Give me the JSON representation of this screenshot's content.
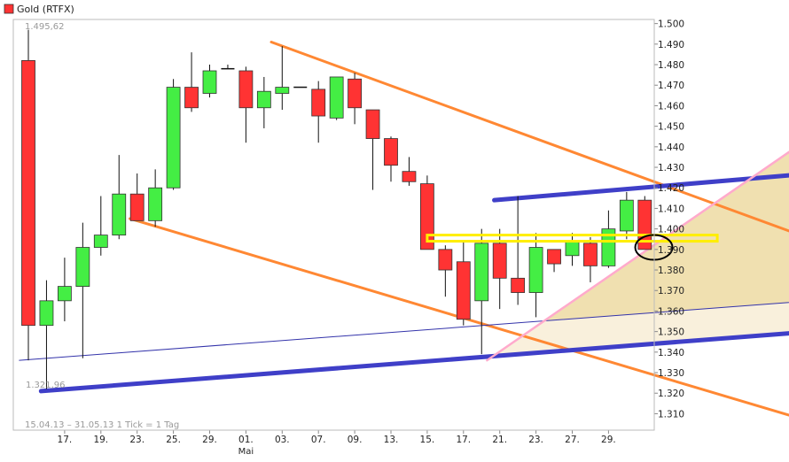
{
  "legend": {
    "label": "Gold (RTFX)",
    "swatch_color": "#ff3333"
  },
  "chart_data": {
    "type": "candlestick",
    "title": "Gold (RTFX)",
    "legend_position": "top-left",
    "ylim": [
      1302,
      1502
    ],
    "y_ticks": [
      1500,
      1490,
      1480,
      1470,
      1460,
      1450,
      1440,
      1430,
      1420,
      1410,
      1400,
      1390,
      1380,
      1370,
      1360,
      1350,
      1340,
      1330,
      1320,
      1310
    ],
    "y_tick_labels": [
      "1.500",
      "1.490",
      "1.480",
      "1.470",
      "1.460",
      "1.450",
      "1.440",
      "1.430",
      "1.420",
      "1.410",
      "1.400",
      "1.390",
      "1.380",
      "1.370",
      "1.360",
      "1.350",
      "1.340",
      "1.330",
      "1.320",
      "1.310"
    ],
    "x_labels": [
      {
        "index": 2,
        "label": "17."
      },
      {
        "index": 4,
        "label": "19."
      },
      {
        "index": 6,
        "label": "23."
      },
      {
        "index": 8,
        "label": "25."
      },
      {
        "index": 10,
        "label": "29."
      },
      {
        "index": 12,
        "label": "01."
      },
      {
        "index": 14,
        "label": "03."
      },
      {
        "index": 16,
        "label": "07."
      },
      {
        "index": 18,
        "label": "09."
      },
      {
        "index": 20,
        "label": "13."
      },
      {
        "index": 22,
        "label": "15."
      },
      {
        "index": 24,
        "label": "17."
      },
      {
        "index": 26,
        "label": "21."
      },
      {
        "index": 28,
        "label": "23."
      },
      {
        "index": 30,
        "label": "27."
      },
      {
        "index": 32,
        "label": "29."
      }
    ],
    "month_label": {
      "index": 12,
      "label": "Mai"
    },
    "high_annotation": {
      "index": 0,
      "value": 1495.62,
      "label": "1.495,62"
    },
    "low_annotation": {
      "index": 1,
      "value": 1321.96,
      "label": "1.321,96"
    },
    "date_range_label": "15.04.13 – 31.05.13   1 Tick = 1 Tag",
    "colors": {
      "up": "#44ee44",
      "down": "#ff3333",
      "resistance": "#ff8833",
      "support": "#3f3fc8",
      "thin_trend": "#3333aa",
      "pink_trend": "#ffaacc",
      "horizontal_zone": "#ffee00",
      "marker_circle": "#000000"
    },
    "candles": [
      {
        "open": 1482,
        "high": 1497,
        "low": 1336,
        "close": 1353
      },
      {
        "open": 1353,
        "high": 1375,
        "low": 1322,
        "close": 1365
      },
      {
        "open": 1365,
        "high": 1386,
        "low": 1355,
        "close": 1372
      },
      {
        "open": 1372,
        "high": 1403,
        "low": 1337,
        "close": 1391
      },
      {
        "open": 1391,
        "high": 1416,
        "low": 1387,
        "close": 1397
      },
      {
        "open": 1397,
        "high": 1436,
        "low": 1395,
        "close": 1417
      },
      {
        "open": 1417,
        "high": 1427,
        "low": 1404,
        "close": 1404
      },
      {
        "open": 1404,
        "high": 1429,
        "low": 1401,
        "close": 1420
      },
      {
        "open": 1420,
        "high": 1473,
        "low": 1419,
        "close": 1469
      },
      {
        "open": 1469,
        "high": 1486,
        "low": 1457,
        "close": 1459
      },
      {
        "open": 1466,
        "high": 1480,
        "low": 1464,
        "close": 1477
      },
      {
        "open": 1478,
        "high": 1480,
        "low": 1478,
        "close": 1478
      },
      {
        "open": 1477,
        "high": 1479,
        "low": 1442,
        "close": 1459
      },
      {
        "open": 1459,
        "high": 1474,
        "low": 1449,
        "close": 1467
      },
      {
        "open": 1466,
        "high": 1489,
        "low": 1458,
        "close": 1469
      },
      {
        "open": 1469,
        "high": 1469,
        "low": 1469,
        "close": 1469
      },
      {
        "open": 1468,
        "high": 1472,
        "low": 1442,
        "close": 1455
      },
      {
        "open": 1454,
        "high": 1473,
        "low": 1453,
        "close": 1474
      },
      {
        "open": 1473,
        "high": 1476,
        "low": 1451,
        "close": 1459
      },
      {
        "open": 1458,
        "high": 1458,
        "low": 1419,
        "close": 1444
      },
      {
        "open": 1444,
        "high": 1445,
        "low": 1423,
        "close": 1431
      },
      {
        "open": 1428,
        "high": 1435,
        "low": 1421,
        "close": 1423
      },
      {
        "open": 1422,
        "high": 1426,
        "low": 1390,
        "close": 1390
      },
      {
        "open": 1390,
        "high": 1392,
        "low": 1367,
        "close": 1380
      },
      {
        "open": 1384,
        "high": 1394,
        "low": 1353,
        "close": 1356
      },
      {
        "open": 1365,
        "high": 1400,
        "low": 1339,
        "close": 1393
      },
      {
        "open": 1393,
        "high": 1400,
        "low": 1361,
        "close": 1376
      },
      {
        "open": 1376,
        "high": 1416,
        "low": 1363,
        "close": 1369
      },
      {
        "open": 1369,
        "high": 1398,
        "low": 1357,
        "close": 1391
      },
      {
        "open": 1390,
        "high": 1390,
        "low": 1379,
        "close": 1383
      },
      {
        "open": 1387,
        "high": 1398,
        "low": 1382,
        "close": 1394
      },
      {
        "open": 1393,
        "high": 1396,
        "low": 1374,
        "close": 1382
      },
      {
        "open": 1382,
        "high": 1409,
        "low": 1381,
        "close": 1400
      },
      {
        "open": 1399,
        "high": 1418,
        "low": 1395,
        "close": 1414
      },
      {
        "open": 1414,
        "high": 1416,
        "low": 1392,
        "close": 1390
      }
    ],
    "trend_lines": [
      {
        "name": "resistance-upper",
        "kind": "resistance",
        "from": {
          "index": 13.4,
          "value": 1491
        },
        "to": {
          "index": 43.2,
          "value": 1395
        }
      },
      {
        "name": "resistance-lower",
        "kind": "resistance",
        "from": {
          "index": 5.6,
          "value": 1405
        },
        "to": {
          "index": 43.2,
          "value": 1306
        }
      },
      {
        "name": "support-bottom",
        "kind": "support",
        "from": {
          "index": 0.7,
          "value": 1321
        },
        "to": {
          "index": 43.2,
          "value": 1350
        }
      },
      {
        "name": "support-top",
        "kind": "support",
        "from": {
          "index": 25.7,
          "value": 1414
        },
        "to": {
          "index": 43.2,
          "value": 1427
        }
      },
      {
        "name": "thin-trend",
        "kind": "thin",
        "from": {
          "index": -0.5,
          "value": 1336
        },
        "to": {
          "index": 43.2,
          "value": 1365
        }
      },
      {
        "name": "pink-trend",
        "kind": "pink",
        "from": {
          "index": 25.3,
          "value": 1336
        },
        "to": {
          "index": 43.2,
          "value": 1445
        }
      }
    ],
    "horizontal_zone": {
      "from_index": 22.0,
      "to_index": 38.0,
      "low": 1394,
      "high": 1397
    },
    "marker_circle": {
      "index": 34.5,
      "value": 1391
    }
  }
}
